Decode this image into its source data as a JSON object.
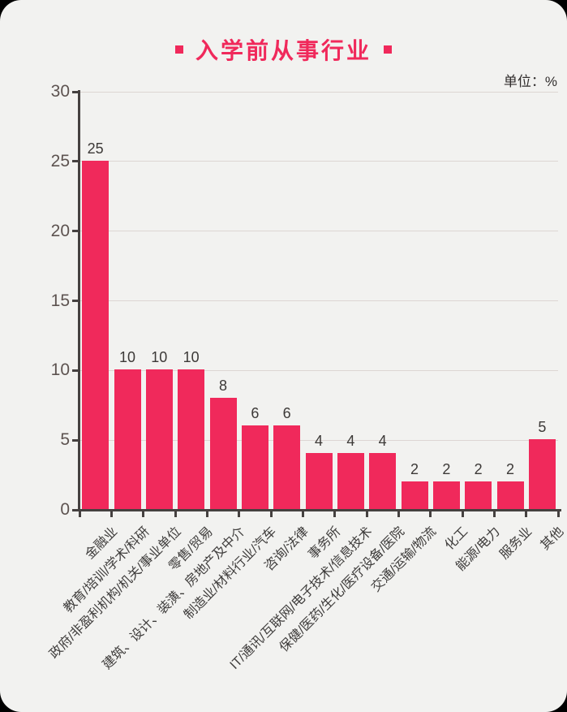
{
  "title": {
    "text": "入学前从事行业"
  },
  "unit_label": "单位：%",
  "colors": {
    "accent": "#f0295b",
    "background": "#f2f2f0",
    "gridline": "#ddd6d3",
    "axis": "#454140",
    "ytick_label": "#5d5350",
    "value_label": "#3c3937",
    "category_label": "#3f3d3c",
    "unit_label": "#312e2d"
  },
  "chart_data": {
    "type": "bar",
    "title": "入学前从事行业",
    "unit": "%",
    "categories": [
      "金融业",
      "教育/培训/学术/科研",
      "政府/非盈利机构/机关/事业单位",
      "零售/贸易",
      "建筑、设计、装潢、房地产及中介",
      "制造业/材料行业/汽车",
      "咨询/法律",
      "事务所",
      "IT/通讯/互联网/电子技术/信息技术",
      "保健/医药/生化/医疗设备/医院",
      "交通/运输/物流",
      "化工",
      "能源/电力",
      "服务业",
      "其他"
    ],
    "values": [
      25,
      10,
      10,
      10,
      8,
      6,
      6,
      4,
      4,
      4,
      2,
      2,
      2,
      2,
      5
    ],
    "xlabel": "",
    "ylabel": "",
    "ylim": [
      0,
      30
    ],
    "yticks": [
      0,
      5,
      10,
      15,
      20,
      25,
      30
    ],
    "grid": true,
    "legend": false,
    "bar_color": "#f0295b",
    "value_labels_shown": true,
    "category_label_rotation_deg": -45
  }
}
